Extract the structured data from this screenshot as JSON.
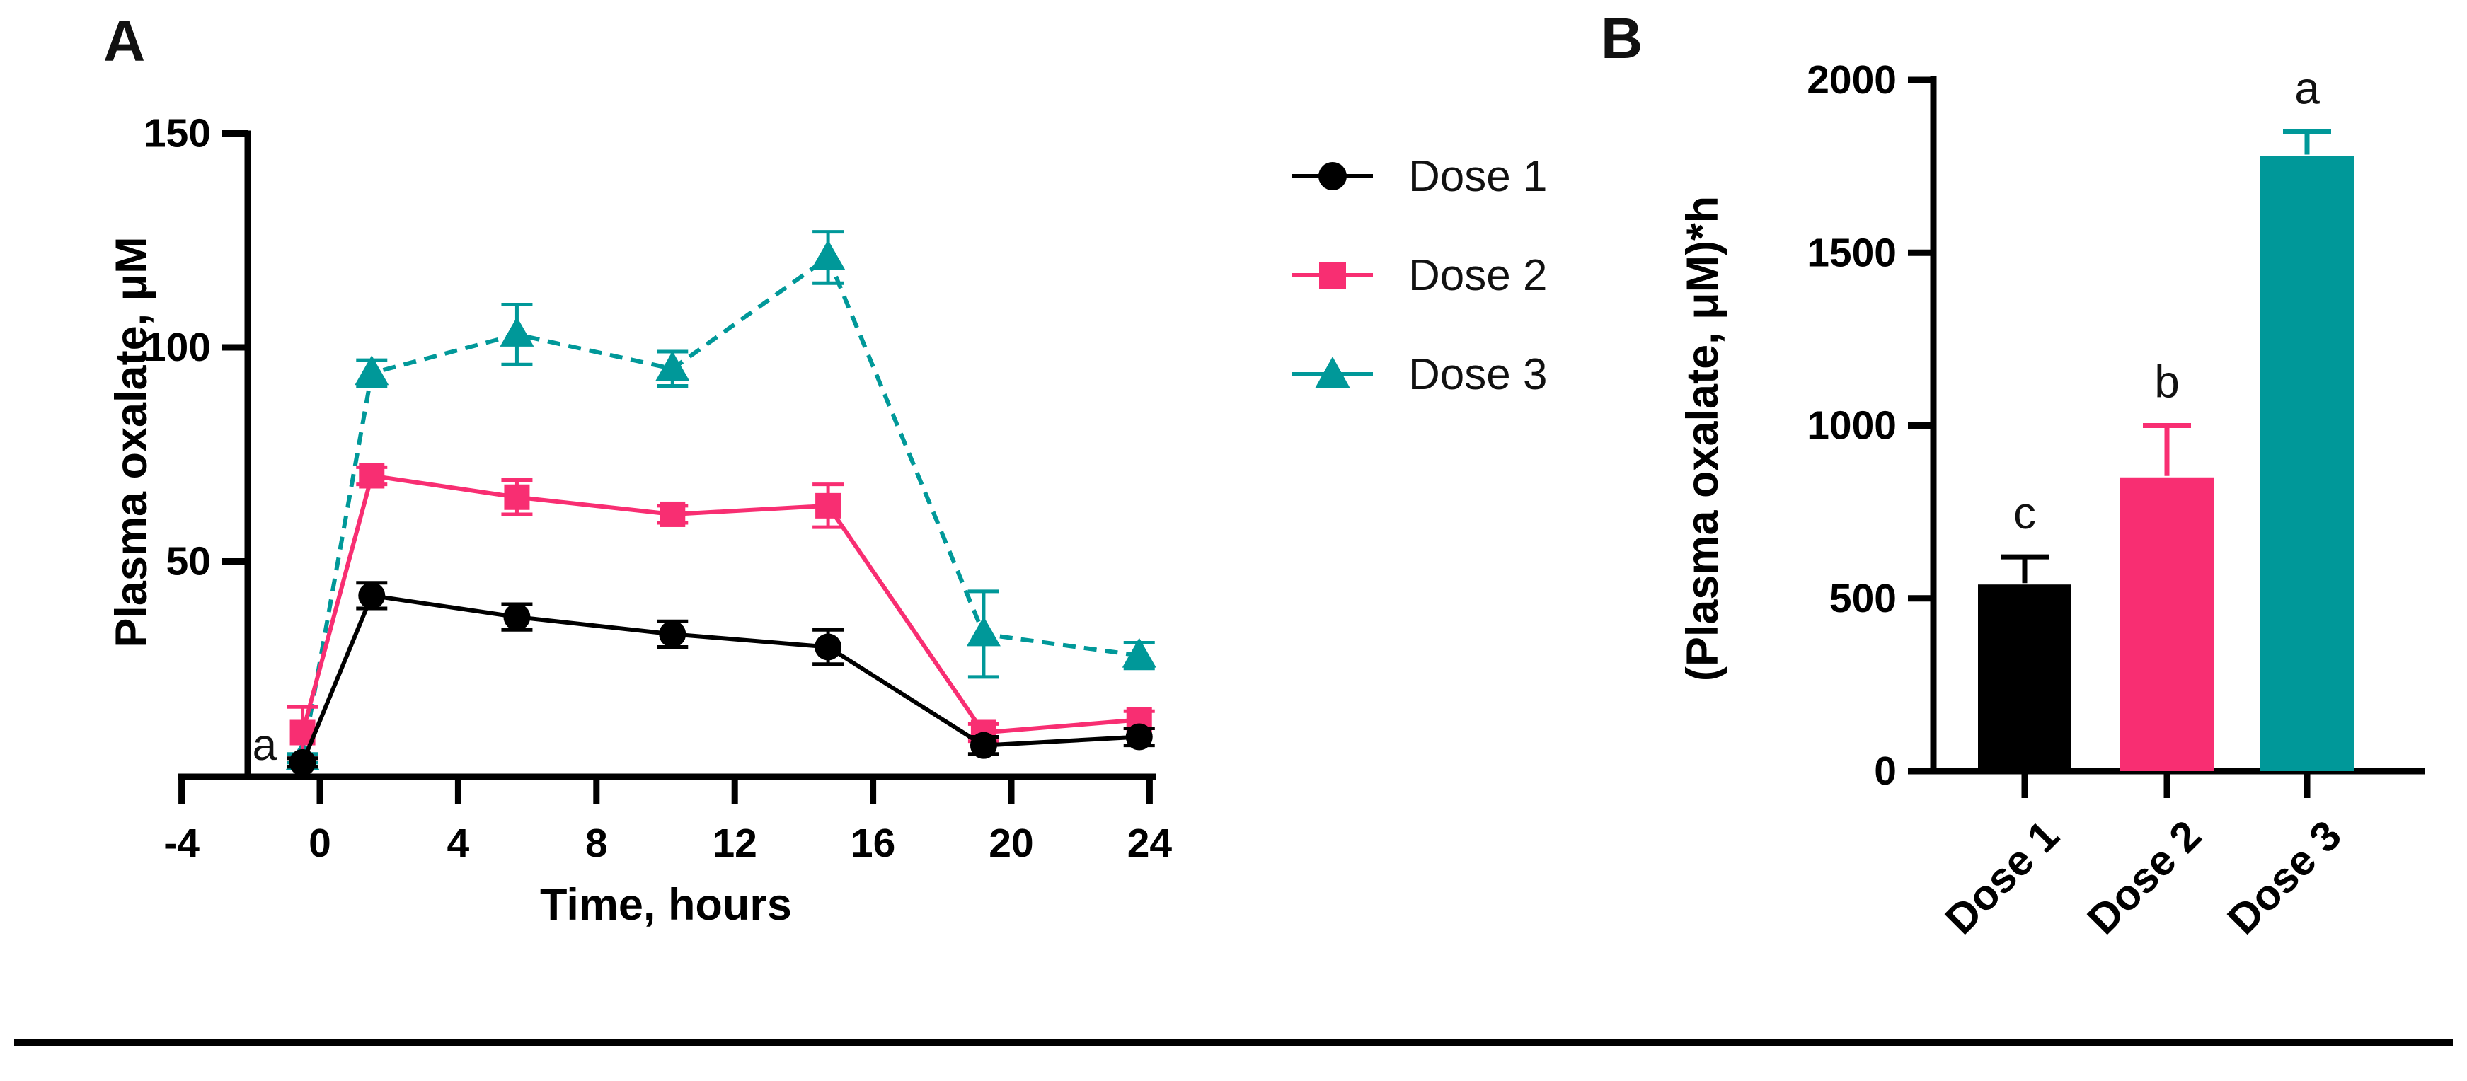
{
  "figure": {
    "background": "#ffffff",
    "divider_color": "#000000"
  },
  "panel_a": {
    "panel_letter": "A"
  },
  "panel_b": {
    "panel_letter": "B"
  },
  "legend": {
    "items": [
      {
        "label": "Dose 1",
        "marker": "circle-icon",
        "color": "#000000"
      },
      {
        "label": "Dose 2",
        "marker": "square-icon",
        "color": "#f82e72"
      },
      {
        "label": "Dose 3",
        "marker": "triangle-icon",
        "color": "#009899"
      }
    ]
  },
  "chart_data": [
    {
      "id": "panel_a",
      "type": "line",
      "title": "",
      "xlabel": "Time, hours",
      "ylabel": "Plasma oxalate, μM",
      "xlim": [
        -4,
        24
      ],
      "ylim": [
        0,
        150
      ],
      "xticks": [
        -4,
        0,
        4,
        8,
        12,
        16,
        20,
        24
      ],
      "yticks": [
        50,
        100,
        150
      ],
      "x": [
        -0.5,
        1.5,
        5.7,
        10.2,
        14.7,
        19.2,
        23.7
      ],
      "series": [
        {
          "name": "Dose 1",
          "color": "#000000",
          "marker": "circle",
          "line": "solid",
          "values": [
            3,
            42,
            37,
            33,
            30,
            7,
            9
          ],
          "errors": [
            1,
            3,
            3,
            3,
            4,
            2,
            2
          ]
        },
        {
          "name": "Dose 2",
          "color": "#f82e72",
          "marker": "square",
          "line": "solid",
          "values": [
            10,
            70,
            65,
            61,
            63,
            10,
            13
          ],
          "errors": [
            6,
            2,
            4,
            2,
            5,
            2,
            2
          ]
        },
        {
          "name": "Dose 3",
          "color": "#009899",
          "marker": "triangle",
          "line": "dashed",
          "values": [
            4,
            94,
            103,
            95,
            121,
            33,
            28
          ],
          "errors": [
            1,
            3,
            7,
            4,
            6,
            10,
            3
          ]
        }
      ],
      "annotation": {
        "text": "a",
        "x": -1.6,
        "y": 7
      },
      "legend_position": "right",
      "grid": false
    },
    {
      "id": "panel_b",
      "type": "bar",
      "title": "",
      "xlabel": "",
      "ylabel": "(Plasma oxalate, μM)*h",
      "ylim": [
        0,
        2000
      ],
      "yticks": [
        0,
        500,
        1000,
        1500,
        2000
      ],
      "categories": [
        "Dose 1",
        "Dose 2",
        "Dose 3"
      ],
      "values": [
        540,
        850,
        1780
      ],
      "errors": [
        80,
        150,
        70
      ],
      "bar_letters": [
        "c",
        "b",
        "a"
      ],
      "colors": [
        "#000000",
        "#f82e72",
        "#009899"
      ],
      "grid": false
    }
  ]
}
